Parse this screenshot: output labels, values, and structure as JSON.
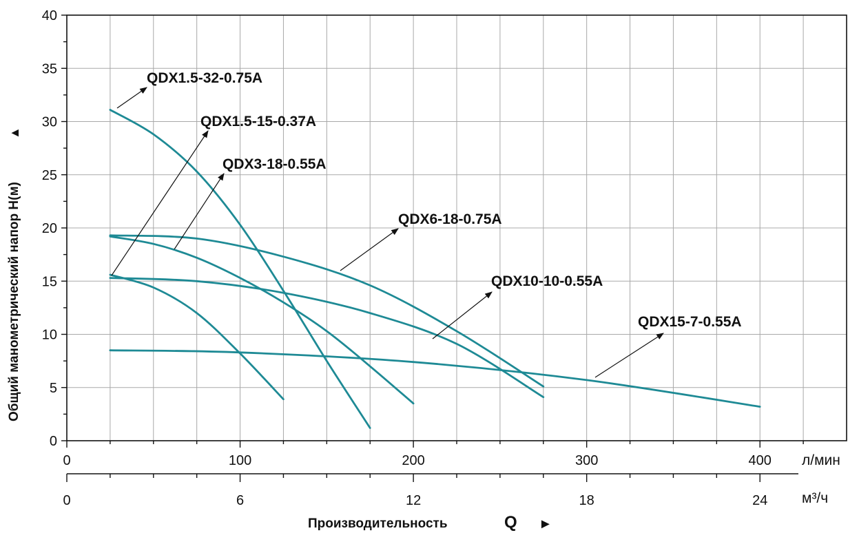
{
  "colors": {
    "curve": "#1e8a95",
    "grid": "#a8a8a8",
    "axis": "#111111"
  },
  "chart_data": {
    "type": "line",
    "ylabel": "Общий манометрический напор Н(м)",
    "xlabel": "Производительность",
    "xlabel_symbol": "Q",
    "y_arrow": "▲",
    "x_arrow": "►",
    "ylim": [
      0,
      40
    ],
    "y_ticks": [
      "0",
      "5",
      "10",
      "15",
      "20",
      "25",
      "30",
      "35",
      "40"
    ],
    "xlim": [
      0,
      450
    ],
    "x_axis_lpm": {
      "unit": "л/мин",
      "ticks": [
        "0",
        "100",
        "200",
        "300",
        "400"
      ]
    },
    "x_axis_m3h": {
      "unit": "м³/ч",
      "ticks": [
        "0",
        "6",
        "12",
        "18",
        "24"
      ],
      "values": [
        0,
        6,
        12,
        18,
        24
      ]
    },
    "grid": true,
    "series": [
      {
        "name": "QDX1.5-32-0.75A",
        "x": [
          25,
          50,
          75,
          100,
          125,
          150,
          175
        ],
        "y": [
          31.1,
          28.8,
          25.3,
          20.3,
          14.1,
          7.5,
          1.2
        ]
      },
      {
        "name": "QDX1.5-15-0.37A",
        "x": [
          25,
          50,
          75,
          100,
          125
        ],
        "y": [
          15.6,
          14.4,
          12.0,
          8.2,
          3.9
        ]
      },
      {
        "name": "QDX3-18-0.55A",
        "x": [
          25,
          50,
          75,
          100,
          125,
          150,
          175,
          200
        ],
        "y": [
          19.2,
          18.5,
          17.2,
          15.3,
          13.0,
          10.3,
          7.0,
          3.5
        ]
      },
      {
        "name": "QDX6-18-0.75A",
        "x": [
          25,
          75,
          125,
          175,
          225,
          275
        ],
        "y": [
          19.3,
          19.0,
          17.3,
          14.6,
          10.3,
          5.1
        ]
      },
      {
        "name": "QDX10-10-0.55A",
        "x": [
          25,
          75,
          125,
          175,
          225,
          275
        ],
        "y": [
          15.3,
          15.0,
          13.9,
          12.0,
          9.1,
          4.1
        ]
      },
      {
        "name": "QDX15-7-0.55A",
        "x": [
          25,
          100,
          200,
          300,
          400
        ],
        "y": [
          8.5,
          8.3,
          7.4,
          5.7,
          3.2
        ]
      }
    ]
  }
}
